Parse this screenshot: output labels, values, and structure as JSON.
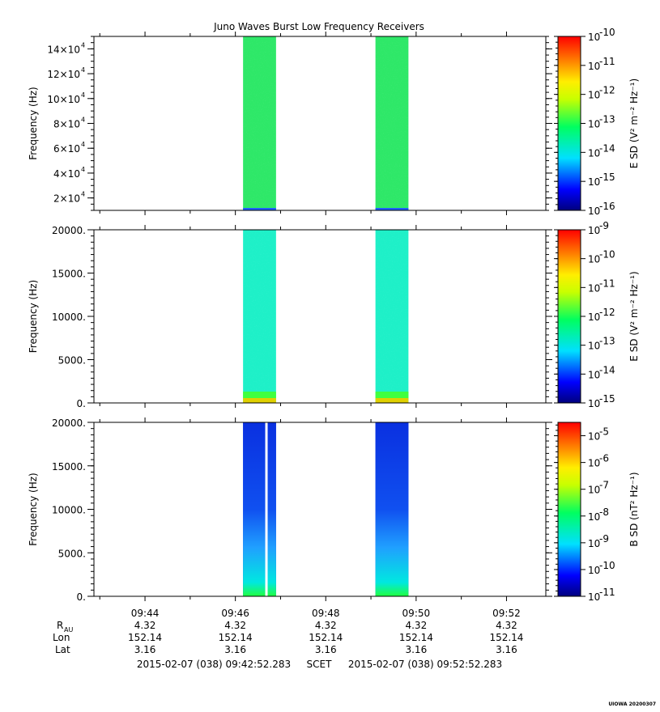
{
  "chart_data": {
    "type": "heatmap",
    "title": "Juno Waves Burst Low Frequency Receivers",
    "x_ticks": [
      "09:44",
      "09:46",
      "09:48",
      "09:50",
      "09:52"
    ],
    "x_tick_minutes": [
      44,
      46,
      48,
      50,
      52
    ],
    "xlim_minutes": [
      42.87,
      52.87
    ],
    "data_blocks_minutes": [
      [
        46.17,
        46.9
      ],
      [
        49.1,
        49.83
      ]
    ],
    "panels": [
      {
        "ylabel": "Frequency (Hz)",
        "ylim": [
          10000,
          150000
        ],
        "yticks": [
          {
            "value": 20000,
            "mantissa": "2×10",
            "exp": "4"
          },
          {
            "value": 40000,
            "mantissa": "4×10",
            "exp": "4"
          },
          {
            "value": 60000,
            "mantissa": "6×10",
            "exp": "4"
          },
          {
            "value": 80000,
            "mantissa": "8×10",
            "exp": "4"
          },
          {
            "value": 100000,
            "mantissa": "10×10",
            "exp": "4"
          },
          {
            "value": 120000,
            "mantissa": "12×10",
            "exp": "4"
          },
          {
            "value": 140000,
            "mantissa": "14×10",
            "exp": "4"
          }
        ],
        "colorbar_label": "E SD (V² m⁻² Hz⁻¹)",
        "colorbar_exponents": [
          "-10",
          "-11",
          "-12",
          "-13",
          "-14",
          "-15",
          "-16"
        ],
        "colorbar_range_exp": [
          -16,
          -10
        ],
        "fill": "#2ee868"
      },
      {
        "ylabel": "Frequency (Hz)",
        "ylim": [
          0,
          20000
        ],
        "yticks": [
          {
            "value": 0,
            "label": "0."
          },
          {
            "value": 5000,
            "label": "5000."
          },
          {
            "value": 10000,
            "label": "10000."
          },
          {
            "value": 15000,
            "label": "15000."
          },
          {
            "value": 20000,
            "label": "20000."
          }
        ],
        "colorbar_label": "E SD (V² m⁻² Hz⁻¹)",
        "colorbar_exponents": [
          "-9",
          "-10",
          "-11",
          "-12",
          "-13",
          "-14",
          "-15"
        ],
        "colorbar_range_exp": [
          -15,
          -9
        ],
        "fill": "#1ef0c8"
      },
      {
        "ylabel": "Frequency (Hz)",
        "ylim": [
          0,
          20000
        ],
        "yticks": [
          {
            "value": 0,
            "label": "0."
          },
          {
            "value": 5000,
            "label": "5000."
          },
          {
            "value": 10000,
            "label": "10000."
          },
          {
            "value": 15000,
            "label": "15000."
          },
          {
            "value": 20000,
            "label": "20000."
          }
        ],
        "colorbar_label": "B SD (nT² Hz⁻¹)",
        "colorbar_exponents": [
          "-5",
          "-6",
          "-7",
          "-8",
          "-9",
          "-10",
          "-11"
        ],
        "colorbar_range_exp": [
          -11,
          -4.5
        ],
        "fill": "#0a3ae8"
      }
    ],
    "ephemeris": {
      "labels": {
        "r_main": "R",
        "r_sub": "AU",
        "lon": "Lon",
        "lat": "Lat"
      },
      "r": [
        "4.32",
        "4.32",
        "4.32",
        "4.32",
        "4.32"
      ],
      "lon": [
        "152.14",
        "152.14",
        "152.14",
        "152.14",
        "152.14"
      ],
      "lat": [
        "3.16",
        "3.16",
        "3.16",
        "3.16",
        "3.16"
      ]
    },
    "time_range": {
      "start": "2015-02-07 (038) 09:42:52.283",
      "label": "SCET",
      "end": "2015-02-07 (038) 09:52:52.283"
    },
    "footer": "UIOWA 20200307"
  }
}
